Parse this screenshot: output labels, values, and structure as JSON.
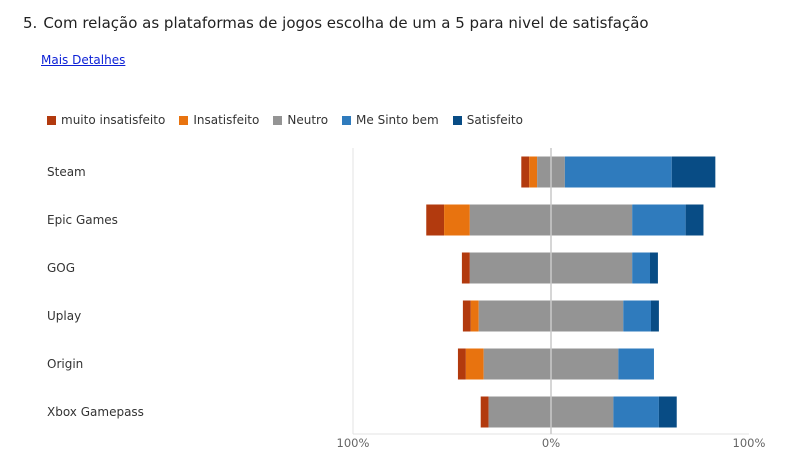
{
  "question": {
    "number": "5.",
    "text": "Com relação as plataformas de jogos escolha de um a 5 para nivel de satisfação"
  },
  "details_link": "Mais Detalhes",
  "colors": {
    "muito insatisfeito": "#b23a0e",
    "Insatisfeito": "#e8730f",
    "Neutro": "#949494",
    "Me Sinto bem": "#2f7bbd",
    "Satisfeito": "#084c85"
  },
  "chart_data": {
    "type": "bar",
    "orientation": "horizontal-diverging",
    "categories": [
      "Steam",
      "Epic Games",
      "GOG",
      "Uplay",
      "Origin",
      "Xbox Gamepass"
    ],
    "series": [
      {
        "name": "muito insatisfeito",
        "values": [
          4,
          9,
          4,
          4,
          4,
          4
        ]
      },
      {
        "name": "Insatisfeito",
        "values": [
          4,
          13,
          0,
          4,
          9,
          0
        ]
      },
      {
        "name": "Neutro",
        "values": [
          14,
          82,
          82,
          73,
          68,
          63
        ]
      },
      {
        "name": "Me Sinto bem",
        "values": [
          54,
          27,
          9,
          14,
          18,
          23
        ]
      },
      {
        "name": "Satisfeito",
        "values": [
          22,
          9,
          4,
          4,
          0,
          9
        ]
      }
    ],
    "xlim": [
      -100,
      100
    ],
    "tick_labels": [
      "100%",
      "0%",
      "100%"
    ],
    "legend_position": "top-left",
    "grid": false
  }
}
